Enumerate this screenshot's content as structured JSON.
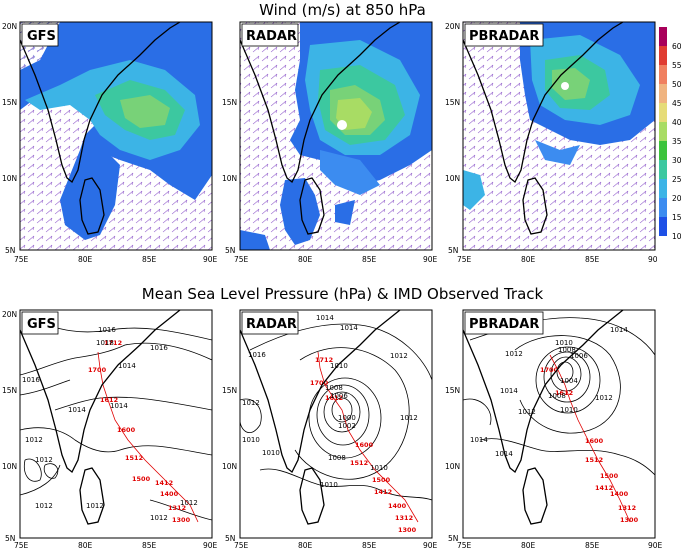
{
  "titles": {
    "wind": "Wind (m/s) at 850 hPa",
    "mslp": "Mean Sea Level Pressure (hPa) & IMD Observed Track"
  },
  "panel_labels": [
    "GFS",
    "RADAR",
    "PBRADAR"
  ],
  "axis": {
    "lon_ticks": [
      "75E",
      "80E",
      "85E",
      "90E"
    ],
    "lon_ticks_last": [
      "75E",
      "80E",
      "85E",
      "90"
    ],
    "lat_ticks": [
      "20N",
      "15N",
      "10N",
      "5N"
    ]
  },
  "colorbar": {
    "labels": [
      "60",
      "55",
      "50",
      "45",
      "40",
      "35",
      "30",
      "25",
      "20",
      "15",
      "10"
    ],
    "colors": [
      "#a8005a",
      "#e03c32",
      "#f08060",
      "#f0b480",
      "#e6dc78",
      "#a8dc64",
      "#3cc33c",
      "#3cc8a0",
      "#3cb4e6",
      "#3c8cf0",
      "#1e50e6"
    ]
  },
  "isobars": {
    "gfs": [
      "1016",
      "1018",
      "1016",
      "1014",
      "1016",
      "1014",
      "1012",
      "1014",
      "1012",
      "1012",
      "1012",
      "1012",
      "1012"
    ],
    "radar": [
      "1014",
      "1016",
      "1014",
      "1012",
      "1010",
      "1008",
      "1006",
      "1002",
      "1000",
      "1008",
      "1010",
      "1010",
      "1012",
      "1012",
      "1010",
      "1010"
    ],
    "pbradar": [
      "1014",
      "1012",
      "1010",
      "1008",
      "1006",
      "1004",
      "1008",
      "1010",
      "1012",
      "1014",
      "1014",
      "1014",
      "1012"
    ]
  },
  "track_labels": [
    "1712",
    "1700",
    "1612",
    "1600",
    "1512",
    "1500",
    "1412",
    "1400",
    "1312",
    "1300"
  ]
}
